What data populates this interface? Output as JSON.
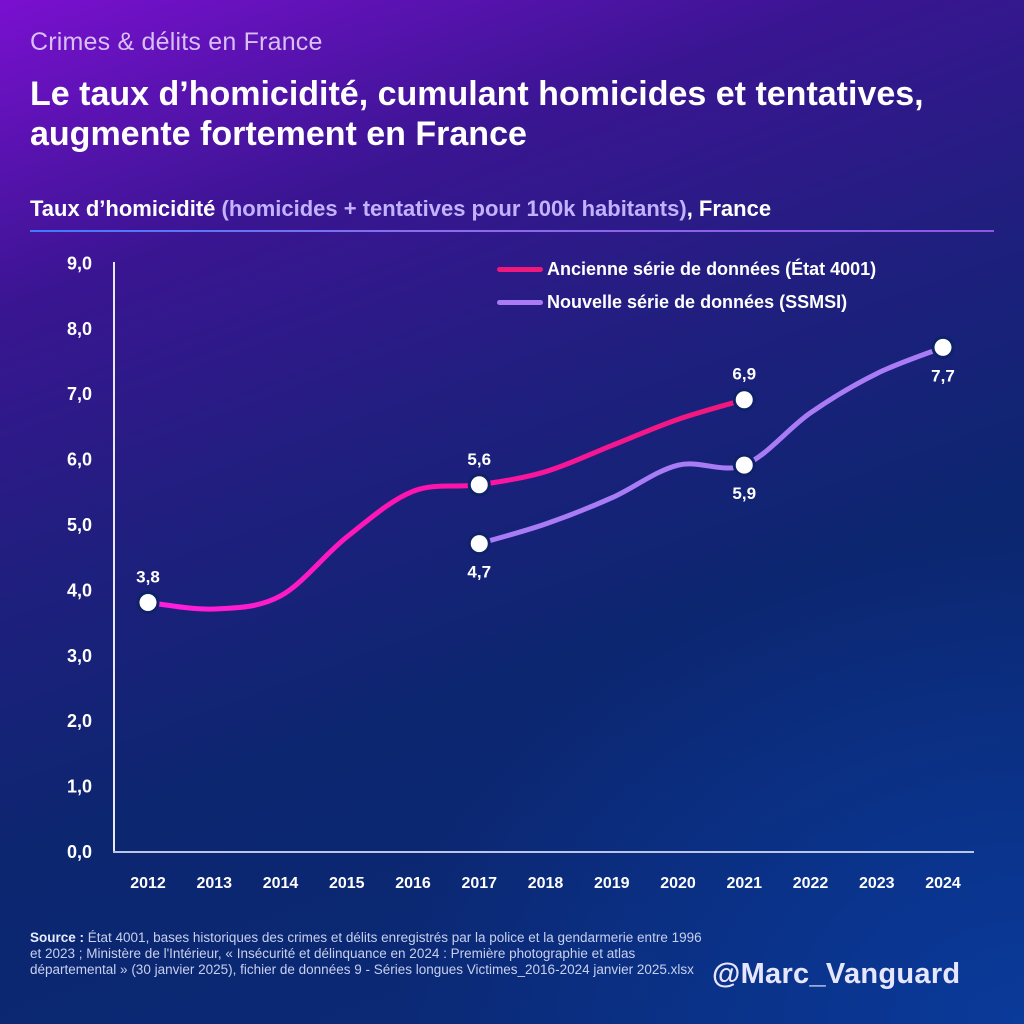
{
  "header": {
    "kicker": "Crimes & délits en France",
    "headline": "Le taux d’homicidité, cumulant homicides et tentatives, augmente fortement en France"
  },
  "subtitle": {
    "part1": "Taux d’homicidité ",
    "part2": "(homicides + tentatives pour 100k habitants)",
    "part3": ", France"
  },
  "legend": {
    "items": [
      {
        "label": "Ancienne série de données (État 4001)",
        "color": "#f0187a"
      },
      {
        "label": "Nouvelle série de données (SSMSI)",
        "color": "#a97cf6"
      }
    ]
  },
  "footer": {
    "source_label": "Source : ",
    "source_text": "État 4001, bases historiques des crimes et délits enregistrés par la police et la gendarmerie entre 1996 et 2023 ; Ministère de l'Intérieur, « Insécurité et délinquance en 2024 : Première photographie et atlas départemental » (30 janvier 2025), fichier de données 9 - Séries longues Victimes_2016-2024  janvier 2025.xlsx",
    "handle": "@Marc_Vanguard"
  },
  "colors": {
    "series_old_start": "#ff1fe0",
    "series_old_end": "#f0187a",
    "series_new": "#a97cf6",
    "axis": "#e8e8f8",
    "marker": "#ffffff"
  },
  "chart_data": {
    "type": "line",
    "title": "Taux d’homicidité (homicides + tentatives pour 100k habitants), France",
    "xlabel": "",
    "ylabel": "",
    "x": [
      2012,
      2013,
      2014,
      2015,
      2016,
      2017,
      2018,
      2019,
      2020,
      2021,
      2022,
      2023,
      2024
    ],
    "ylim": [
      0,
      9
    ],
    "yticks": [
      "0,0",
      "1,0",
      "2,0",
      "3,0",
      "4,0",
      "5,0",
      "6,0",
      "7,0",
      "8,0",
      "9,0"
    ],
    "grid": false,
    "legend_position": "top-right",
    "series": [
      {
        "name": "Ancienne série de données (État 4001)",
        "x": [
          2012,
          2013,
          2014,
          2015,
          2016,
          2017,
          2018,
          2019,
          2020,
          2021
        ],
        "values": [
          3.8,
          3.7,
          3.9,
          4.8,
          5.5,
          5.6,
          5.8,
          6.2,
          6.6,
          6.9
        ]
      },
      {
        "name": "Nouvelle série de données (SSMSI)",
        "x": [
          2017,
          2018,
          2019,
          2020,
          2021,
          2022,
          2023,
          2024
        ],
        "values": [
          4.7,
          5.0,
          5.4,
          5.9,
          5.9,
          6.7,
          7.3,
          7.7
        ]
      }
    ],
    "annotations": [
      {
        "x": 2012,
        "y": 3.8,
        "text": "3,8",
        "position": "above"
      },
      {
        "x": 2017,
        "y": 5.6,
        "text": "5,6",
        "position": "above"
      },
      {
        "x": 2017,
        "y": 4.7,
        "text": "4,7",
        "position": "below"
      },
      {
        "x": 2021,
        "y": 6.9,
        "text": "6,9",
        "position": "above"
      },
      {
        "x": 2021,
        "y": 5.9,
        "text": "5,9",
        "position": "below"
      },
      {
        "x": 2024,
        "y": 7.7,
        "text": "7,7",
        "position": "below"
      }
    ]
  }
}
